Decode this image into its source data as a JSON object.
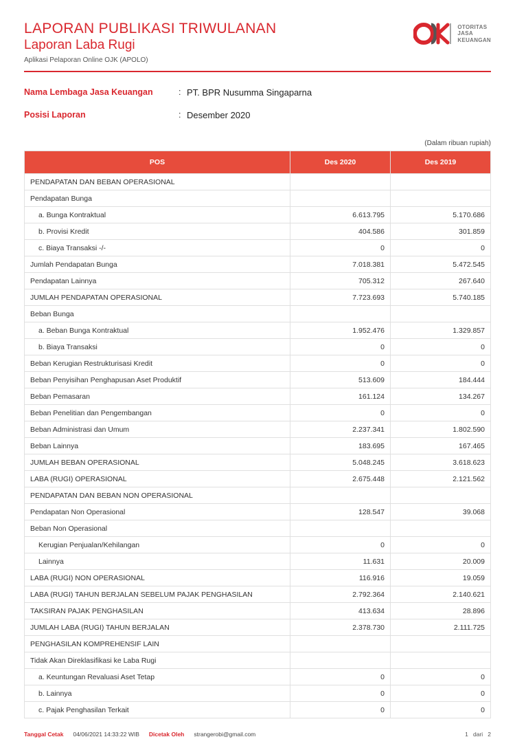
{
  "header": {
    "title": "LAPORAN PUBLIKASI TRIWULANAN",
    "subtitle": "Laporan Laba Rugi",
    "app": "Aplikasi Pelaporan Online OJK (APOLO)",
    "logo_text": "OTORITAS\nJASA\nKEUANGAN"
  },
  "meta": {
    "institution_label": "Nama Lembaga Jasa Keuangan",
    "institution_value": "PT. BPR Nusumma Singaparna",
    "position_label": "Posisi Laporan",
    "position_value": "Desember 2020"
  },
  "unit_note": "(Dalam ribuan rupiah)",
  "table": {
    "headers": [
      "POS",
      "Des 2020",
      "Des 2019"
    ],
    "rows": [
      {
        "pos": "PENDAPATAN DAN BEBAN OPERASIONAL",
        "v1": "",
        "v2": "",
        "indent": 0
      },
      {
        "pos": "Pendapatan Bunga",
        "v1": "",
        "v2": "",
        "indent": 0
      },
      {
        "pos": "a.   Bunga Kontraktual",
        "v1": "6.613.795",
        "v2": "5.170.686",
        "indent": 1
      },
      {
        "pos": "b.   Provisi Kredit",
        "v1": "404.586",
        "v2": "301.859",
        "indent": 1
      },
      {
        "pos": "c.   Biaya Transaksi -/-",
        "v1": "0",
        "v2": "0",
        "indent": 1
      },
      {
        "pos": "Jumlah Pendapatan Bunga",
        "v1": "7.018.381",
        "v2": "5.472.545",
        "indent": 0
      },
      {
        "pos": "Pendapatan Lainnya",
        "v1": "705.312",
        "v2": "267.640",
        "indent": 0
      },
      {
        "pos": "JUMLAH PENDAPATAN OPERASIONAL",
        "v1": "7.723.693",
        "v2": "5.740.185",
        "indent": 0
      },
      {
        "pos": "Beban Bunga",
        "v1": "",
        "v2": "",
        "indent": 0
      },
      {
        "pos": "a.   Beban Bunga Kontraktual",
        "v1": "1.952.476",
        "v2": "1.329.857",
        "indent": 1
      },
      {
        "pos": "b.   Biaya Transaksi",
        "v1": "0",
        "v2": "0",
        "indent": 1
      },
      {
        "pos": "Beban Kerugian Restrukturisasi Kredit",
        "v1": "0",
        "v2": "0",
        "indent": 0
      },
      {
        "pos": "Beban Penyisihan Penghapusan Aset Produktif",
        "v1": "513.609",
        "v2": "184.444",
        "indent": 0
      },
      {
        "pos": "Beban Pemasaran",
        "v1": "161.124",
        "v2": "134.267",
        "indent": 0
      },
      {
        "pos": "Beban Penelitian dan Pengembangan",
        "v1": "0",
        "v2": "0",
        "indent": 0
      },
      {
        "pos": "Beban Administrasi dan Umum",
        "v1": "2.237.341",
        "v2": "1.802.590",
        "indent": 0
      },
      {
        "pos": "Beban Lainnya",
        "v1": "183.695",
        "v2": "167.465",
        "indent": 0
      },
      {
        "pos": "JUMLAH BEBAN OPERASIONAL",
        "v1": "5.048.245",
        "v2": "3.618.623",
        "indent": 0
      },
      {
        "pos": "LABA (RUGI) OPERASIONAL",
        "v1": "2.675.448",
        "v2": "2.121.562",
        "indent": 0
      },
      {
        "pos": "PENDAPATAN DAN BEBAN NON OPERASIONAL",
        "v1": "",
        "v2": "",
        "indent": 0
      },
      {
        "pos": "Pendapatan Non Operasional",
        "v1": "128.547",
        "v2": "39.068",
        "indent": 0
      },
      {
        "pos": "Beban Non Operasional",
        "v1": "",
        "v2": "",
        "indent": 0
      },
      {
        "pos": "Kerugian Penjualan/Kehilangan",
        "v1": "0",
        "v2": "0",
        "indent": 1
      },
      {
        "pos": "Lainnya",
        "v1": "11.631",
        "v2": "20.009",
        "indent": 1
      },
      {
        "pos": "LABA (RUGI) NON OPERASIONAL",
        "v1": "116.916",
        "v2": "19.059",
        "indent": 0
      },
      {
        "pos": "LABA (RUGI) TAHUN BERJALAN SEBELUM PAJAK PENGHASILAN",
        "v1": "2.792.364",
        "v2": "2.140.621",
        "indent": 0
      },
      {
        "pos": "TAKSIRAN PAJAK PENGHASILAN",
        "v1": "413.634",
        "v2": "28.896",
        "indent": 0
      },
      {
        "pos": "JUMLAH LABA (RUGI) TAHUN BERJALAN",
        "v1": "2.378.730",
        "v2": "2.111.725",
        "indent": 0
      },
      {
        "pos": "PENGHASILAN KOMPREHENSIF LAIN",
        "v1": "",
        "v2": "",
        "indent": 0
      },
      {
        "pos": "Tidak Akan Direklasifikasi ke Laba Rugi",
        "v1": "",
        "v2": "",
        "indent": 0
      },
      {
        "pos": "a. Keuntungan Revaluasi  Aset Tetap",
        "v1": "0",
        "v2": "0",
        "indent": 1
      },
      {
        "pos": "b. Lainnya",
        "v1": "0",
        "v2": "0",
        "indent": 1
      },
      {
        "pos": "c. Pajak Penghasilan Terkait",
        "v1": "0",
        "v2": "0",
        "indent": 1
      }
    ]
  },
  "footer": {
    "print_date_label": "Tanggal Cetak",
    "print_date_value": "04/06/2021 14:33:22 WIB",
    "printed_by_label": "Dicetak Oleh",
    "printed_by_value": "strangerobi@gmail.com",
    "page_current": "1",
    "page_sep": "dari",
    "page_total": "2"
  },
  "colors": {
    "accent": "#d9272e",
    "th_bg": "#e74c3c",
    "border": "#e0e0e0"
  }
}
